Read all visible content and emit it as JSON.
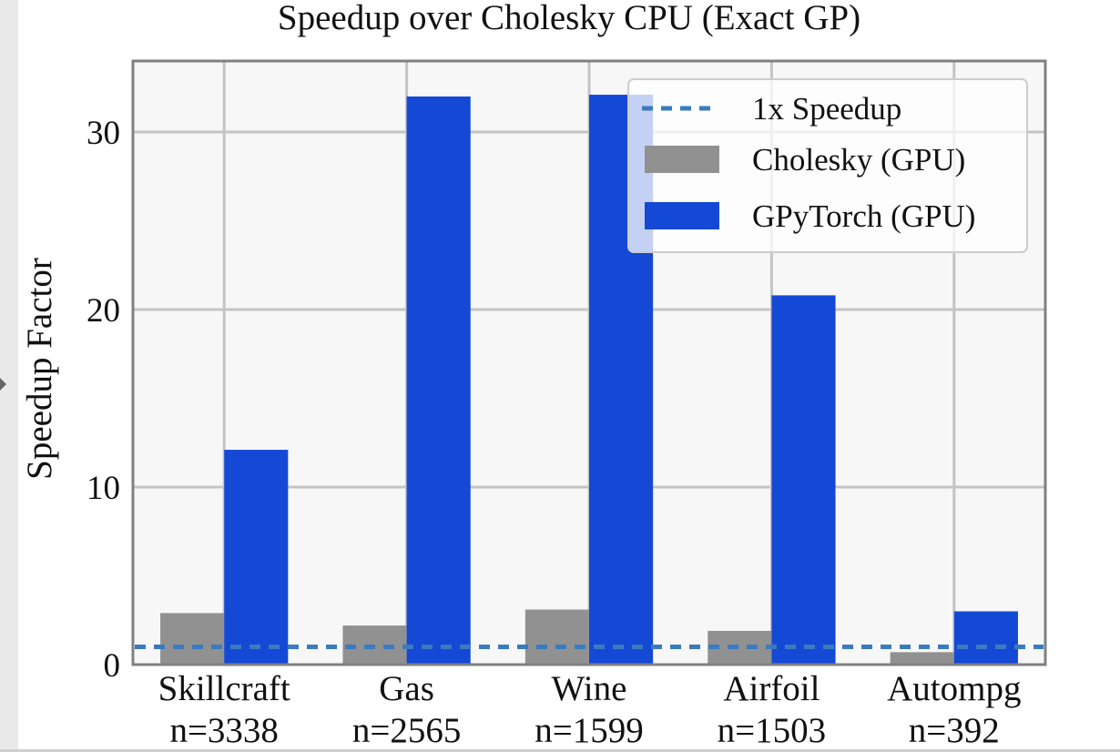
{
  "chart_data": {
    "type": "bar",
    "title": "Speedup over Cholesky CPU (Exact GP)",
    "xlabel": "",
    "ylabel": "Speedup Factor",
    "ylim": [
      0,
      34
    ],
    "yticks": [
      0,
      10,
      20,
      30
    ],
    "grid": true,
    "legend_position": "top-right",
    "categories": [
      {
        "name": "Skillcraft",
        "n": "n=3338"
      },
      {
        "name": "Gas",
        "n": "n=2565"
      },
      {
        "name": "Wine",
        "n": "n=1599"
      },
      {
        "name": "Airfoil",
        "n": "n=1503"
      },
      {
        "name": "Autompg",
        "n": "n=392"
      }
    ],
    "series": [
      {
        "name": "Cholesky (GPU)",
        "color": "#919191",
        "values": [
          2.9,
          2.2,
          3.1,
          1.9,
          0.7
        ]
      },
      {
        "name": "GPyTorch (GPU)",
        "color": "#1449d6",
        "values": [
          12.1,
          32.0,
          32.1,
          20.8,
          3.0
        ]
      }
    ],
    "reference_line": {
      "name": "1x Speedup",
      "value": 1,
      "color": "#3a7bbf",
      "style": "dashed"
    }
  }
}
